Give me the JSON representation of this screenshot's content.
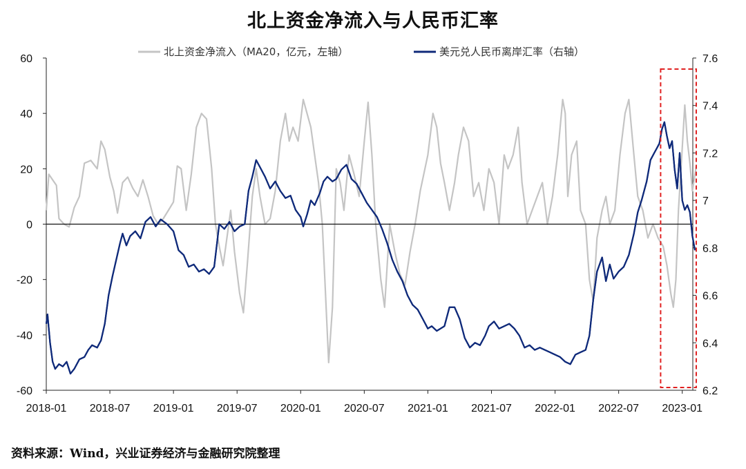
{
  "page": {
    "title": "北上资金净流入与人民币汇率",
    "source": "资料来源：Wind，兴业证券经济与金融研究院整理"
  },
  "chart_data": {
    "type": "line",
    "title": "北上资金净流入与人民币汇率",
    "x_ticks": [
      "2018-01",
      "2018-07",
      "2019-01",
      "2019-07",
      "2020-01",
      "2020-07",
      "2021-01",
      "2021-07",
      "2022-01",
      "2022-07",
      "2023-01"
    ],
    "x_range": [
      2018.0,
      2023.083
    ],
    "y_left": {
      "range": [
        -60,
        60
      ],
      "ticks": [
        "60",
        "40",
        "20",
        "0",
        "-20",
        "-40",
        "-60"
      ],
      "label": "亿元"
    },
    "y_right": {
      "range": [
        6.2,
        7.6
      ],
      "ticks": [
        "7.6",
        "7.4",
        "7.2",
        "7",
        "6.8",
        "6.6",
        "6.4",
        "6.2"
      ]
    },
    "highlight": {
      "from": 2022.83,
      "to": 2023.11,
      "style": "red dashed box"
    },
    "series": [
      {
        "name": "北上资金净流入（MA20，亿元，左轴）",
        "axis": "left",
        "color": "#c4c4c4",
        "points": [
          [
            2018.0,
            5
          ],
          [
            2018.02,
            18
          ],
          [
            2018.05,
            16
          ],
          [
            2018.08,
            14
          ],
          [
            2018.1,
            2
          ],
          [
            2018.14,
            0
          ],
          [
            2018.18,
            -1
          ],
          [
            2018.22,
            6
          ],
          [
            2018.26,
            10
          ],
          [
            2018.3,
            22
          ],
          [
            2018.35,
            23
          ],
          [
            2018.4,
            20
          ],
          [
            2018.43,
            30
          ],
          [
            2018.46,
            27
          ],
          [
            2018.5,
            17
          ],
          [
            2018.53,
            12
          ],
          [
            2018.56,
            4
          ],
          [
            2018.6,
            15
          ],
          [
            2018.64,
            17
          ],
          [
            2018.68,
            13
          ],
          [
            2018.72,
            10
          ],
          [
            2018.76,
            16
          ],
          [
            2018.8,
            10
          ],
          [
            2018.84,
            3
          ],
          [
            2018.88,
            0
          ],
          [
            2018.92,
            2
          ],
          [
            2018.96,
            5
          ],
          [
            2019.0,
            8
          ],
          [
            2019.03,
            21
          ],
          [
            2019.06,
            20
          ],
          [
            2019.1,
            5
          ],
          [
            2019.14,
            18
          ],
          [
            2019.18,
            35
          ],
          [
            2019.22,
            40
          ],
          [
            2019.26,
            38
          ],
          [
            2019.3,
            20
          ],
          [
            2019.33,
            0
          ],
          [
            2019.36,
            -8
          ],
          [
            2019.39,
            -15
          ],
          [
            2019.42,
            -5
          ],
          [
            2019.45,
            5
          ],
          [
            2019.48,
            -10
          ],
          [
            2019.52,
            -25
          ],
          [
            2019.55,
            -32
          ],
          [
            2019.58,
            -15
          ],
          [
            2019.62,
            10
          ],
          [
            2019.65,
            20
          ],
          [
            2019.68,
            10
          ],
          [
            2019.72,
            0
          ],
          [
            2019.76,
            2
          ],
          [
            2019.8,
            12
          ],
          [
            2019.84,
            30
          ],
          [
            2019.88,
            40
          ],
          [
            2019.91,
            30
          ],
          [
            2019.94,
            35
          ],
          [
            2019.98,
            30
          ],
          [
            2020.02,
            45
          ],
          [
            2020.05,
            40
          ],
          [
            2020.08,
            35
          ],
          [
            2020.11,
            25
          ],
          [
            2020.14,
            15
          ],
          [
            2020.17,
            0
          ],
          [
            2020.19,
            -20
          ],
          [
            2020.22,
            -50
          ],
          [
            2020.25,
            -30
          ],
          [
            2020.28,
            20
          ],
          [
            2020.31,
            15
          ],
          [
            2020.34,
            5
          ],
          [
            2020.38,
            25
          ],
          [
            2020.42,
            18
          ],
          [
            2020.46,
            10
          ],
          [
            2020.5,
            30
          ],
          [
            2020.53,
            44
          ],
          [
            2020.56,
            25
          ],
          [
            2020.59,
            0
          ],
          [
            2020.63,
            -20
          ],
          [
            2020.66,
            -30
          ],
          [
            2020.7,
            0
          ],
          [
            2020.74,
            -10
          ],
          [
            2020.78,
            -18
          ],
          [
            2020.82,
            -22
          ],
          [
            2020.86,
            -10
          ],
          [
            2020.9,
            0
          ],
          [
            2020.94,
            12
          ],
          [
            2021.0,
            25
          ],
          [
            2021.04,
            40
          ],
          [
            2021.07,
            35
          ],
          [
            2021.1,
            22
          ],
          [
            2021.13,
            15
          ],
          [
            2021.17,
            5
          ],
          [
            2021.21,
            15
          ],
          [
            2021.24,
            25
          ],
          [
            2021.28,
            35
          ],
          [
            2021.32,
            30
          ],
          [
            2021.36,
            10
          ],
          [
            2021.4,
            15
          ],
          [
            2021.44,
            5
          ],
          [
            2021.48,
            20
          ],
          [
            2021.52,
            15
          ],
          [
            2021.56,
            0
          ],
          [
            2021.6,
            25
          ],
          [
            2021.63,
            20
          ],
          [
            2021.67,
            25
          ],
          [
            2021.71,
            35
          ],
          [
            2021.74,
            15
          ],
          [
            2021.78,
            0
          ],
          [
            2021.82,
            5
          ],
          [
            2021.86,
            10
          ],
          [
            2021.9,
            15
          ],
          [
            2021.94,
            0
          ],
          [
            2021.98,
            10
          ],
          [
            2022.02,
            25
          ],
          [
            2022.06,
            45
          ],
          [
            2022.08,
            40
          ],
          [
            2022.1,
            10
          ],
          [
            2022.13,
            25
          ],
          [
            2022.17,
            30
          ],
          [
            2022.2,
            5
          ],
          [
            2022.24,
            0
          ],
          [
            2022.27,
            -20
          ],
          [
            2022.3,
            -28
          ],
          [
            2022.33,
            -5
          ],
          [
            2022.37,
            5
          ],
          [
            2022.4,
            10
          ],
          [
            2022.43,
            0
          ],
          [
            2022.47,
            5
          ],
          [
            2022.51,
            25
          ],
          [
            2022.55,
            40
          ],
          [
            2022.58,
            45
          ],
          [
            2022.62,
            25
          ],
          [
            2022.65,
            10
          ],
          [
            2022.69,
            5
          ],
          [
            2022.73,
            -5
          ],
          [
            2022.77,
            0
          ],
          [
            2022.81,
            -5
          ],
          [
            2022.85,
            -8
          ],
          [
            2022.88,
            -15
          ],
          [
            2022.91,
            -25
          ],
          [
            2022.93,
            -30
          ],
          [
            2022.95,
            -20
          ],
          [
            2022.97,
            5
          ],
          [
            2022.99,
            20
          ],
          [
            2023.02,
            43
          ],
          [
            2023.04,
            30
          ],
          [
            2023.06,
            22
          ],
          [
            2023.08,
            12
          ],
          [
            2023.11,
            21
          ]
        ]
      },
      {
        "name": "美元兑人民币离岸汇率（右轴）",
        "axis": "right",
        "color": "#0f2a7a",
        "points": [
          [
            2018.0,
            6.48
          ],
          [
            2018.01,
            6.52
          ],
          [
            2018.03,
            6.4
          ],
          [
            2018.05,
            6.32
          ],
          [
            2018.07,
            6.29
          ],
          [
            2018.1,
            6.31
          ],
          [
            2018.13,
            6.3
          ],
          [
            2018.16,
            6.32
          ],
          [
            2018.19,
            6.27
          ],
          [
            2018.22,
            6.29
          ],
          [
            2018.26,
            6.33
          ],
          [
            2018.3,
            6.34
          ],
          [
            2018.33,
            6.37
          ],
          [
            2018.36,
            6.39
          ],
          [
            2018.4,
            6.38
          ],
          [
            2018.43,
            6.41
          ],
          [
            2018.46,
            6.48
          ],
          [
            2018.49,
            6.6
          ],
          [
            2018.52,
            6.68
          ],
          [
            2018.55,
            6.75
          ],
          [
            2018.58,
            6.82
          ],
          [
            2018.6,
            6.86
          ],
          [
            2018.63,
            6.81
          ],
          [
            2018.66,
            6.85
          ],
          [
            2018.7,
            6.87
          ],
          [
            2018.74,
            6.84
          ],
          [
            2018.78,
            6.91
          ],
          [
            2018.82,
            6.93
          ],
          [
            2018.86,
            6.89
          ],
          [
            2018.9,
            6.92
          ],
          [
            2018.95,
            6.9
          ],
          [
            2019.0,
            6.87
          ],
          [
            2019.04,
            6.79
          ],
          [
            2019.08,
            6.77
          ],
          [
            2019.12,
            6.72
          ],
          [
            2019.16,
            6.73
          ],
          [
            2019.2,
            6.7
          ],
          [
            2019.24,
            6.71
          ],
          [
            2019.28,
            6.69
          ],
          [
            2019.32,
            6.72
          ],
          [
            2019.36,
            6.9
          ],
          [
            2019.4,
            6.88
          ],
          [
            2019.44,
            6.91
          ],
          [
            2019.48,
            6.87
          ],
          [
            2019.52,
            6.89
          ],
          [
            2019.56,
            6.9
          ],
          [
            2019.59,
            7.04
          ],
          [
            2019.62,
            7.1
          ],
          [
            2019.65,
            7.17
          ],
          [
            2019.68,
            7.14
          ],
          [
            2019.72,
            7.1
          ],
          [
            2019.76,
            7.05
          ],
          [
            2019.8,
            7.08
          ],
          [
            2019.84,
            7.04
          ],
          [
            2019.88,
            7.01
          ],
          [
            2019.92,
            7.02
          ],
          [
            2019.96,
            6.96
          ],
          [
            2020.0,
            6.93
          ],
          [
            2020.02,
            6.89
          ],
          [
            2020.05,
            6.94
          ],
          [
            2020.08,
            7.0
          ],
          [
            2020.11,
            6.98
          ],
          [
            2020.15,
            7.03
          ],
          [
            2020.18,
            7.08
          ],
          [
            2020.21,
            7.1
          ],
          [
            2020.25,
            7.08
          ],
          [
            2020.28,
            7.09
          ],
          [
            2020.32,
            7.13
          ],
          [
            2020.36,
            7.15
          ],
          [
            2020.4,
            7.09
          ],
          [
            2020.44,
            7.07
          ],
          [
            2020.48,
            7.03
          ],
          [
            2020.52,
            6.99
          ],
          [
            2020.56,
            6.96
          ],
          [
            2020.6,
            6.93
          ],
          [
            2020.64,
            6.88
          ],
          [
            2020.68,
            6.82
          ],
          [
            2020.72,
            6.75
          ],
          [
            2020.76,
            6.7
          ],
          [
            2020.8,
            6.66
          ],
          [
            2020.84,
            6.6
          ],
          [
            2020.88,
            6.56
          ],
          [
            2020.92,
            6.54
          ],
          [
            2020.96,
            6.5
          ],
          [
            2021.0,
            6.46
          ],
          [
            2021.03,
            6.47
          ],
          [
            2021.07,
            6.45
          ],
          [
            2021.1,
            6.46
          ],
          [
            2021.13,
            6.47
          ],
          [
            2021.17,
            6.55
          ],
          [
            2021.21,
            6.55
          ],
          [
            2021.25,
            6.5
          ],
          [
            2021.29,
            6.42
          ],
          [
            2021.33,
            6.38
          ],
          [
            2021.37,
            6.4
          ],
          [
            2021.41,
            6.39
          ],
          [
            2021.45,
            6.43
          ],
          [
            2021.48,
            6.47
          ],
          [
            2021.52,
            6.49
          ],
          [
            2021.56,
            6.46
          ],
          [
            2021.6,
            6.47
          ],
          [
            2021.64,
            6.48
          ],
          [
            2021.68,
            6.46
          ],
          [
            2021.72,
            6.43
          ],
          [
            2021.76,
            6.38
          ],
          [
            2021.8,
            6.39
          ],
          [
            2021.84,
            6.37
          ],
          [
            2021.88,
            6.38
          ],
          [
            2021.92,
            6.37
          ],
          [
            2021.96,
            6.36
          ],
          [
            2022.0,
            6.35
          ],
          [
            2022.04,
            6.34
          ],
          [
            2022.08,
            6.32
          ],
          [
            2022.12,
            6.31
          ],
          [
            2022.16,
            6.35
          ],
          [
            2022.2,
            6.36
          ],
          [
            2022.24,
            6.37
          ],
          [
            2022.27,
            6.43
          ],
          [
            2022.3,
            6.58
          ],
          [
            2022.33,
            6.7
          ],
          [
            2022.37,
            6.76
          ],
          [
            2022.4,
            6.66
          ],
          [
            2022.43,
            6.73
          ],
          [
            2022.46,
            6.67
          ],
          [
            2022.5,
            6.7
          ],
          [
            2022.54,
            6.72
          ],
          [
            2022.58,
            6.77
          ],
          [
            2022.62,
            6.86
          ],
          [
            2022.65,
            6.95
          ],
          [
            2022.68,
            7.0
          ],
          [
            2022.72,
            7.08
          ],
          [
            2022.75,
            7.17
          ],
          [
            2022.78,
            7.2
          ],
          [
            2022.8,
            7.22
          ],
          [
            2022.82,
            7.24
          ],
          [
            2022.84,
            7.3
          ],
          [
            2022.86,
            7.33
          ],
          [
            2022.88,
            7.27
          ],
          [
            2022.9,
            7.22
          ],
          [
            2022.92,
            7.25
          ],
          [
            2022.94,
            7.13
          ],
          [
            2022.96,
            7.05
          ],
          [
            2022.98,
            7.2
          ],
          [
            2023.0,
            7.0
          ],
          [
            2023.02,
            6.96
          ],
          [
            2023.04,
            6.98
          ],
          [
            2023.06,
            6.95
          ],
          [
            2023.08,
            6.85
          ],
          [
            2023.1,
            6.79
          ]
        ]
      }
    ],
    "legend": [
      "北上资金净流入（MA20，亿元，左轴）",
      "美元兑人民币离岸汇率（右轴）"
    ],
    "legend_position": "top-center"
  }
}
